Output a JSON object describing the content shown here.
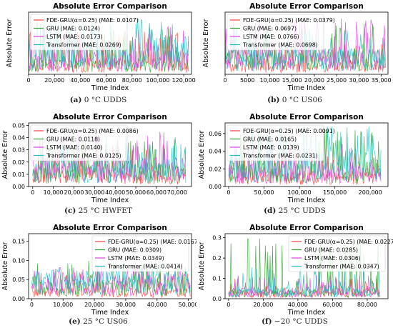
{
  "chart_data": [
    {
      "type": "line",
      "title": "Absolute Error Comparison",
      "xlabel": "Time Index",
      "ylabel": "Absolute Error",
      "xlim": [
        0,
        126000
      ],
      "ylim": [
        0,
        0.08
      ],
      "xticks": [
        0,
        20000,
        40000,
        60000,
        80000,
        100000,
        120000
      ],
      "xtick_labels": [
        "0",
        "20,000",
        "40,000",
        "60,000",
        "80,000",
        "100,000",
        "120,000"
      ],
      "yticks": [],
      "ytick_labels": [],
      "legend": "top-left",
      "caption_label": "(a)",
      "caption_text": "0 °C UDDS",
      "series": [
        {
          "name": "FDE-GRU(α=0.25) (MAE: 0.0107)",
          "color": "#ff4040",
          "mae": 0.0107,
          "peak": 0.055
        },
        {
          "name": "GRU (MAE: 0.0124)",
          "color": "#2ca02c",
          "mae": 0.0124,
          "peak": 0.06
        },
        {
          "name": "LSTM (MAE: 0.0173)",
          "color": "#e040e0",
          "mae": 0.0173,
          "peak": 0.065
        },
        {
          "name": "Transformer (MAE: 0.0269)",
          "color": "#20c0c0",
          "mae": 0.0269,
          "peak": 0.075
        }
      ]
    },
    {
      "type": "line",
      "title": "Absolute Error Comparison",
      "xlabel": "Time Index",
      "ylabel": "Absolute Error",
      "xlim": [
        0,
        36500
      ],
      "ylim": [
        0,
        0.3
      ],
      "xticks": [
        0,
        5000,
        10000,
        15000,
        20000,
        25000,
        30000,
        35000
      ],
      "xtick_labels": [
        "0",
        "5000",
        "10,000",
        "15,000",
        "20,000",
        "25,000",
        "30,000",
        "35,000"
      ],
      "yticks": [],
      "ytick_labels": [],
      "legend": "top-left",
      "caption_label": "(b)",
      "caption_text": "0 °C US06",
      "series": [
        {
          "name": "FDE-GRU(α=0.25) (MAE: 0.0379)",
          "color": "#ff4040",
          "mae": 0.0379,
          "peak": 0.15
        },
        {
          "name": "GRU (MAE: 0.0697)",
          "color": "#2ca02c",
          "mae": 0.0697,
          "peak": 0.25
        },
        {
          "name": "LSTM (MAE: 0.0766)",
          "color": "#e040e0",
          "mae": 0.0766,
          "peak": 0.27
        },
        {
          "name": "Transformer (MAE: 0.0698)",
          "color": "#20c0c0",
          "mae": 0.0698,
          "peak": 0.22
        }
      ]
    },
    {
      "type": "line",
      "title": "Absolute Error Comparison",
      "xlabel": "Time Index",
      "ylabel": "Absolute Error",
      "xlim": [
        -2000,
        77000
      ],
      "ylim": [
        0,
        0.052
      ],
      "xticks": [
        0,
        10000,
        20000,
        30000,
        40000,
        50000,
        60000,
        70000
      ],
      "xtick_labels": [
        "0",
        "10,000",
        "20,000",
        "30,000",
        "40,000",
        "50,000",
        "60,000",
        "70,000"
      ],
      "yticks": [
        0.0,
        0.01,
        0.02,
        0.03,
        0.04,
        0.05
      ],
      "ytick_labels": [
        "0.00",
        "0.01",
        "0.02",
        "0.03",
        "0.04",
        "0.05"
      ],
      "legend": "top-left",
      "caption_label": "(c)",
      "caption_text": "25 °C HWFET",
      "series": [
        {
          "name": "FDE-GRU(α=0.25) (MAE: 0.0086)",
          "color": "#ff4040",
          "mae": 0.0086,
          "peak": 0.035
        },
        {
          "name": "GRU (MAE: 0.0118)",
          "color": "#2ca02c",
          "mae": 0.0118,
          "peak": 0.04
        },
        {
          "name": "LSTM (MAE: 0.0140)",
          "color": "#e040e0",
          "mae": 0.014,
          "peak": 0.045
        },
        {
          "name": "Transformer (MAE: 0.0125)",
          "color": "#20c0c0",
          "mae": 0.0125,
          "peak": 0.042
        }
      ]
    },
    {
      "type": "line",
      "title": "Absolute Error Comparison",
      "xlabel": "Time Index",
      "ylabel": "Absolute Error",
      "xlim": [
        -5000,
        225000
      ],
      "ylim": [
        0,
        0.072
      ],
      "xticks": [
        0,
        50000,
        100000,
        150000,
        200000
      ],
      "xtick_labels": [
        "0",
        "50,000",
        "100,000",
        "150,000",
        "200,000"
      ],
      "yticks": [
        0.0,
        0.02,
        0.04,
        0.06
      ],
      "ytick_labels": [
        "0.00",
        "0.02",
        "0.04",
        "0.06"
      ],
      "legend": "top-left",
      "caption_label": "(d)",
      "caption_text": "25 °C UDDS",
      "series": [
        {
          "name": "FDE-GRU(α=0.25) (MAE: 0.0091)",
          "color": "#ff4040",
          "mae": 0.0091,
          "peak": 0.04
        },
        {
          "name": "GRU (MAE: 0.0165)",
          "color": "#2ca02c",
          "mae": 0.0165,
          "peak": 0.065
        },
        {
          "name": "LSTM (MAE: 0.0139)",
          "color": "#e040e0",
          "mae": 0.0139,
          "peak": 0.05
        },
        {
          "name": "Transformer (MAE: 0.0231)",
          "color": "#20c0c0",
          "mae": 0.0231,
          "peak": 0.068
        }
      ]
    },
    {
      "type": "line",
      "title": "Absolute Error Comparison",
      "xlabel": "Time Index",
      "ylabel": "Absolute Error",
      "xlim": [
        -1000,
        51000
      ],
      "ylim": [
        0,
        0.17
      ],
      "xticks": [
        0,
        10000,
        20000,
        30000,
        40000,
        50000
      ],
      "xtick_labels": [
        "0",
        "10,000",
        "20,000",
        "30,000",
        "40,000",
        "50,000"
      ],
      "yticks": [
        0.0,
        0.05,
        0.1,
        0.15
      ],
      "ytick_labels": [
        "0.00",
        "0.05",
        "0.10",
        "0.15"
      ],
      "legend": "top-right",
      "caption_label": "(e)",
      "caption_text": "25 °C US06",
      "series": [
        {
          "name": "FDE-GRU(α=0.25) (MAE: 0.0167)",
          "color": "#ff4040",
          "mae": 0.0167,
          "peak": 0.07
        },
        {
          "name": "GRU (MAE: 0.0309)",
          "color": "#2ca02c",
          "mae": 0.0309,
          "peak": 0.1
        },
        {
          "name": "LSTM (MAE: 0.0349)",
          "color": "#e040e0",
          "mae": 0.0349,
          "peak": 0.09
        },
        {
          "name": "Transformer (MAE: 0.0414)",
          "color": "#20c0c0",
          "mae": 0.0414,
          "peak": 0.085
        }
      ]
    },
    {
      "type": "line",
      "title": "Absolute Error Comparison",
      "xlabel": "Time Index",
      "ylabel": "Absolute Error",
      "xlim": [
        -2000,
        92000
      ],
      "ylim": [
        0,
        0.32
      ],
      "xticks": [
        0,
        20000,
        40000,
        60000,
        80000
      ],
      "xtick_labels": [
        "0",
        "20,000",
        "40,000",
        "60,000",
        "80,000"
      ],
      "yticks": [
        0.0,
        0.1,
        0.2,
        0.3
      ],
      "ytick_labels": [
        "0.0",
        "0.1",
        "0.2",
        "0.3"
      ],
      "legend": "top-right",
      "caption_label": "(f)",
      "caption_text": "−20 °C UDDS",
      "series": [
        {
          "name": "FDE-GRU(α=0.25) (MAE: 0.0227)",
          "color": "#ff4040",
          "mae": 0.0227,
          "peak": 0.1
        },
        {
          "name": "GRU (MAE: 0.0285)",
          "color": "#2ca02c",
          "mae": 0.0285,
          "peak": 0.3
        },
        {
          "name": "LSTM (MAE: 0.0306)",
          "color": "#e040e0",
          "mae": 0.0306,
          "peak": 0.12
        },
        {
          "name": "Transformer (MAE: 0.0347)",
          "color": "#20c0c0",
          "mae": 0.0347,
          "peak": 0.16
        }
      ]
    }
  ]
}
